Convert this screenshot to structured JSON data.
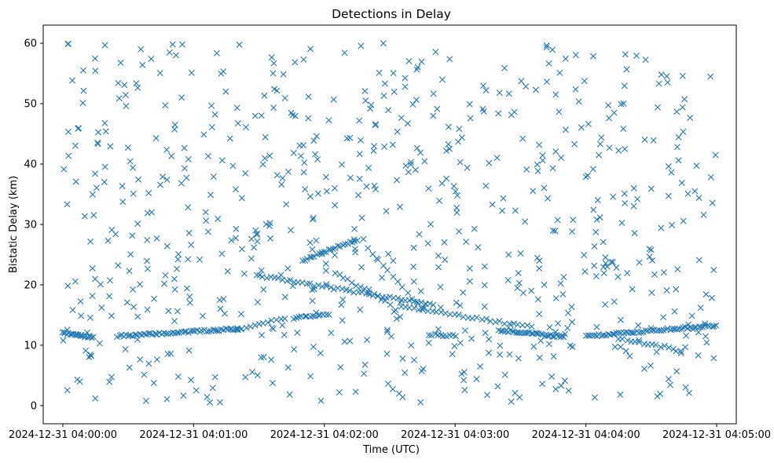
{
  "chart_data": {
    "type": "scatter",
    "title": "Detections in Delay",
    "xlabel": "Time (UTC)",
    "ylabel": "Bistatic Delay (km)",
    "x_domain_seconds": [
      -9,
      309
    ],
    "ylim": [
      -3.0,
      63.0
    ],
    "x_ticks": [
      {
        "label": "2024-12-31 04:00:00",
        "t": 0
      },
      {
        "label": "2024-12-31 04:01:00",
        "t": 60
      },
      {
        "label": "2024-12-31 04:02:00",
        "t": 120
      },
      {
        "label": "2024-12-31 04:03:00",
        "t": 180
      },
      {
        "label": "2024-12-31 04:04:00",
        "t": 240
      },
      {
        "label": "2024-12-31 04:05:00",
        "t": 300
      }
    ],
    "y_ticks": [
      0,
      10,
      20,
      30,
      40,
      50,
      60
    ],
    "marker": "x",
    "color": "#1f77b4",
    "grid": false,
    "legend": "none",
    "tracks": [
      {
        "x": [
          0,
          14
        ],
        "y": [
          12.0,
          11.3
        ],
        "n": 22
      },
      {
        "x": [
          25,
          80
        ],
        "y": [
          11.5,
          12.7
        ],
        "n": 55
      },
      {
        "x": [
          80,
          102
        ],
        "y": [
          12.7,
          14.5
        ],
        "n": 12
      },
      {
        "x": [
          90,
          170
        ],
        "y": [
          21.5,
          16.7
        ],
        "n": 45
      },
      {
        "x": [
          106,
          122
        ],
        "y": [
          14.5,
          15.2
        ],
        "n": 14
      },
      {
        "x": [
          110,
          135
        ],
        "y": [
          24.0,
          27.5
        ],
        "n": 24
      },
      {
        "x": [
          125,
          150
        ],
        "y": [
          22.0,
          16.8
        ],
        "n": 14
      },
      {
        "x": [
          140,
          165
        ],
        "y": [
          26.0,
          16.0
        ],
        "n": 12
      },
      {
        "x": [
          155,
          215
        ],
        "y": [
          16.5,
          13.0
        ],
        "n": 30
      },
      {
        "x": [
          168,
          180
        ],
        "y": [
          11.8,
          11.5
        ],
        "n": 10
      },
      {
        "x": [
          200,
          230
        ],
        "y": [
          12.5,
          11.4
        ],
        "n": 35
      },
      {
        "x": [
          240,
          300
        ],
        "y": [
          11.5,
          13.3
        ],
        "n": 60
      },
      {
        "x": [
          255,
          280
        ],
        "y": [
          11.0,
          9.5
        ],
        "n": 14
      }
    ],
    "scatter_points": [
      [
        0.03,
        0.58
      ],
      [
        0.06,
        0.88
      ],
      [
        0.04,
        0.53
      ],
      [
        0.07,
        0.75
      ],
      [
        0.09,
        0.91
      ],
      [
        0.12,
        0.81
      ],
      [
        0.15,
        0.63
      ],
      [
        0.18,
        0.78
      ],
      [
        0.21,
        0.92
      ],
      [
        0.24,
        0.56
      ],
      [
        0.27,
        0.68
      ],
      [
        0.3,
        0.85
      ],
      [
        0.33,
        0.72
      ],
      [
        0.36,
        0.94
      ],
      [
        0.39,
        0.61
      ],
      [
        0.42,
        0.83
      ],
      [
        0.45,
        0.69
      ],
      [
        0.48,
        0.89
      ],
      [
        0.51,
        0.57
      ],
      [
        0.54,
        0.77
      ],
      [
        0.57,
        0.93
      ],
      [
        0.6,
        0.64
      ],
      [
        0.63,
        0.82
      ],
      [
        0.66,
        0.71
      ],
      [
        0.69,
        0.87
      ],
      [
        0.72,
        0.59
      ],
      [
        0.75,
        0.79
      ],
      [
        0.78,
        0.95
      ],
      [
        0.81,
        0.66
      ],
      [
        0.84,
        0.84
      ],
      [
        0.87,
        0.73
      ],
      [
        0.9,
        0.9
      ],
      [
        0.93,
        0.62
      ],
      [
        0.96,
        0.8
      ]
    ],
    "scatter_count": 720,
    "scatter_seed": 7,
    "scatter_x_range_seconds": [
      0,
      300
    ],
    "scatter_y_range": [
      0.5,
      60.0
    ]
  }
}
